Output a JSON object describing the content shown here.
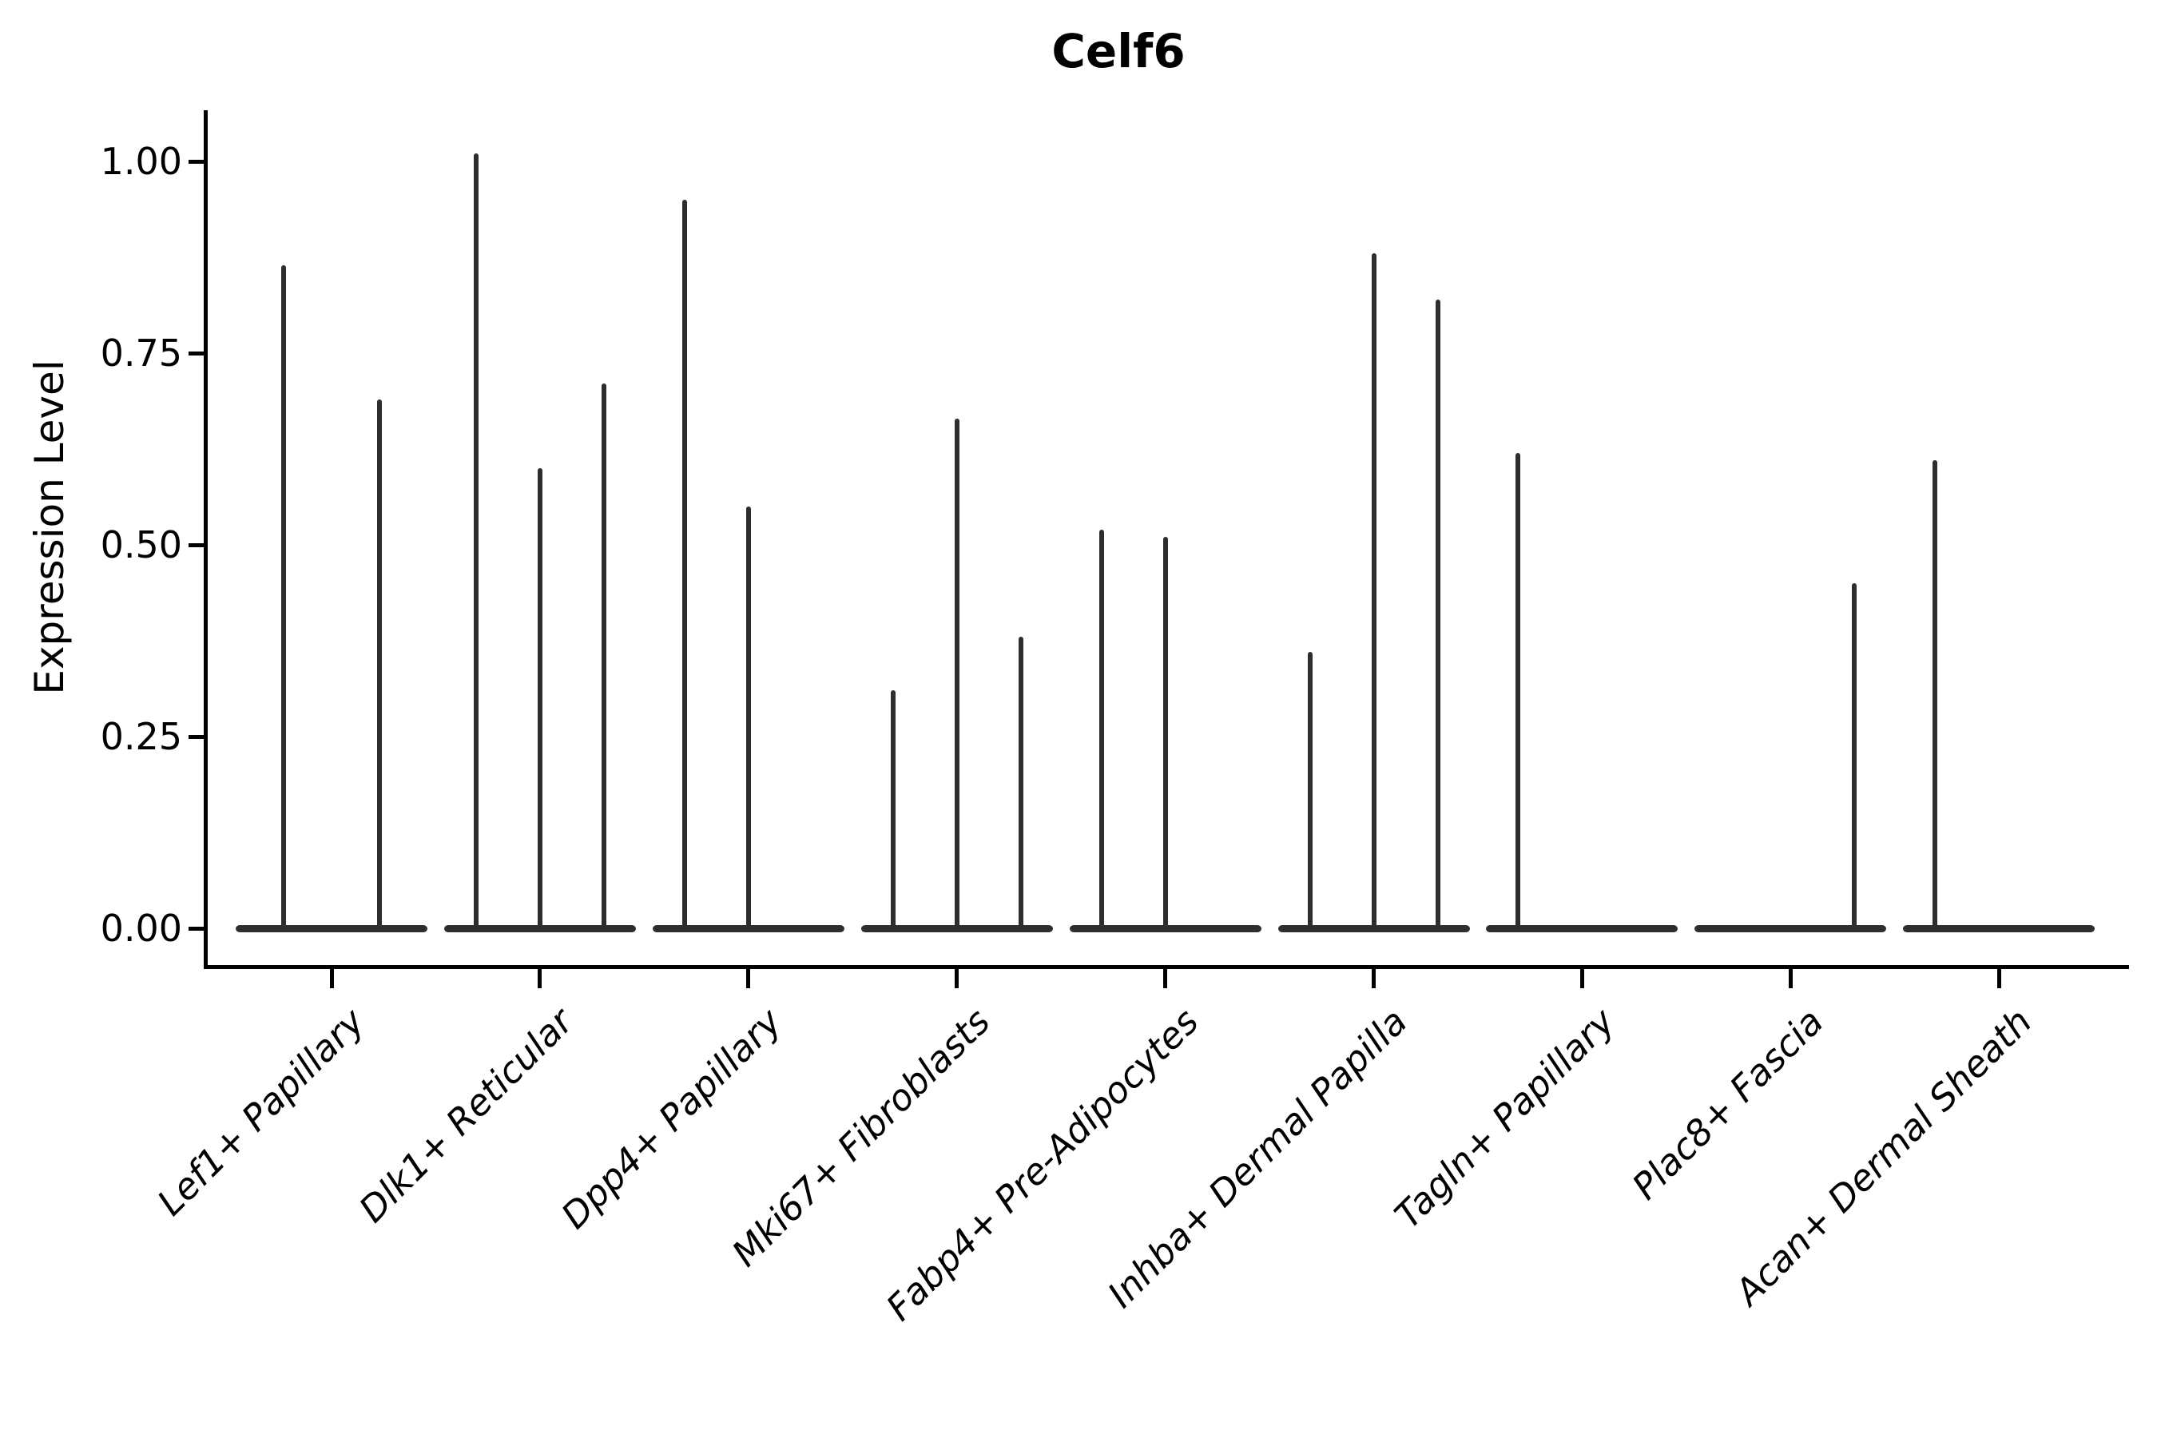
{
  "chart_data": {
    "type": "violin",
    "title": "Celf6",
    "ylabel": "Expression Level",
    "xlabel": "",
    "grid": false,
    "legend": "none",
    "ylim": [
      -0.05,
      1.07
    ],
    "yticks": [
      {
        "value": 0.0,
        "label": "0.00"
      },
      {
        "value": 0.25,
        "label": "0.25"
      },
      {
        "value": 0.5,
        "label": "0.50"
      },
      {
        "value": 0.75,
        "label": "0.75"
      },
      {
        "value": 1.0,
        "label": "1.00"
      }
    ],
    "note": "Each category shows narrow violins (most cells at 0 expression, thin density spike up to the max value). Violin max expression values per slot; 0 means flat violin at baseline.",
    "categories": [
      {
        "label": "Lef1+ Papillary",
        "violin_max": [
          0.865,
          0.69
        ]
      },
      {
        "label": "Dlk1+ Reticular",
        "violin_max": [
          1.01,
          0.6,
          0.71
        ]
      },
      {
        "label": "Dpp4+ Papillary",
        "violin_max": [
          0.95,
          0.55,
          0
        ]
      },
      {
        "label": "Mki67+ Fibroblasts",
        "violin_max": [
          0.31,
          0.665,
          0.38
        ]
      },
      {
        "label": "Fabp4+ Pre-Adipocytes",
        "violin_max": [
          0.52,
          0.51,
          0
        ]
      },
      {
        "label": "Inhba+ Dermal Papilla",
        "violin_max": [
          0.36,
          0.88,
          0.82
        ]
      },
      {
        "label": "Tagln+ Papillary",
        "violin_max": [
          0.62,
          0,
          0
        ]
      },
      {
        "label": "Plac8+ Fascia",
        "violin_max": [
          0,
          0,
          0.45
        ]
      },
      {
        "label": "Acan+ Dermal Sheath",
        "violin_max": [
          0.61,
          0,
          0
        ]
      }
    ],
    "colors": {
      "violin": "#2e2e2e",
      "axis": "#000000",
      "text": "#000000",
      "background": "#ffffff"
    }
  }
}
